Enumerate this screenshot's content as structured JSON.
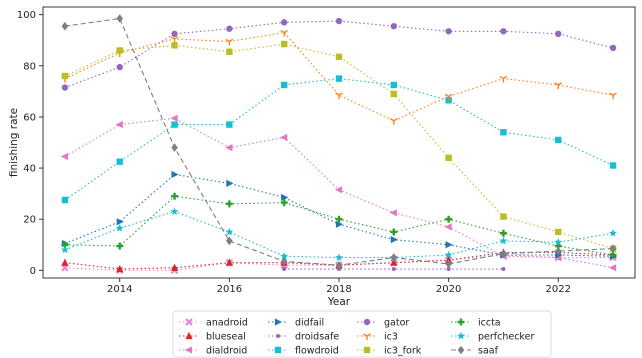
{
  "chart_data": {
    "type": "line",
    "xlabel": "Year",
    "ylabel": "finishing rate",
    "xlim": [
      2012.6,
      2023.4
    ],
    "ylim": [
      -3,
      103
    ],
    "xticks": [
      2014,
      2016,
      2018,
      2020,
      2022
    ],
    "yticks": [
      0,
      20,
      40,
      60,
      80,
      100
    ],
    "grid": false,
    "legend_position": "bottom-center",
    "series": [
      {
        "name": "anadroid",
        "color": "#e58ad8",
        "marker": "x",
        "dash": "dotted",
        "points": [
          [
            2013,
            1
          ],
          [
            2014,
            0
          ],
          [
            2015,
            0
          ],
          [
            2016,
            3
          ],
          [
            2017,
            2
          ],
          [
            2018,
            2
          ],
          [
            2019,
            3
          ],
          [
            2020,
            4
          ],
          [
            2021,
            6
          ],
          [
            2022,
            5
          ],
          [
            2023,
            5
          ]
        ]
      },
      {
        "name": "blueseal",
        "color": "#d62728",
        "marker": "triangle-up",
        "dash": "dotted",
        "points": [
          [
            2013,
            3
          ],
          [
            2014,
            0.5
          ],
          [
            2015,
            1
          ],
          [
            2016,
            3
          ],
          [
            2017,
            3
          ],
          [
            2018,
            2
          ],
          [
            2019,
            3
          ],
          [
            2020,
            4
          ],
          [
            2021,
            7
          ],
          [
            2022,
            7
          ],
          [
            2023,
            6
          ]
        ]
      },
      {
        "name": "dialdroid",
        "color": "#e377c2",
        "marker": "triangle-left",
        "dash": "dotted",
        "points": [
          [
            2013,
            44.5
          ],
          [
            2014,
            57
          ],
          [
            2015,
            59.5
          ],
          [
            2016,
            48
          ],
          [
            2017,
            52
          ],
          [
            2018,
            31.5
          ],
          [
            2019,
            22.5
          ],
          [
            2020,
            17
          ],
          [
            2021,
            5.5
          ],
          [
            2022,
            5
          ],
          [
            2023,
            1
          ]
        ]
      },
      {
        "name": "didfail",
        "color": "#1f77b4",
        "marker": "triangle-right",
        "dash": "dotted",
        "points": [
          [
            2013,
            10.5
          ],
          [
            2014,
            19
          ],
          [
            2015,
            37.5
          ],
          [
            2016,
            34
          ],
          [
            2017,
            28.5
          ],
          [
            2018,
            18
          ],
          [
            2019,
            12
          ],
          [
            2020,
            10
          ],
          [
            2021,
            6
          ],
          [
            2022,
            6
          ],
          [
            2023,
            5.5
          ]
        ]
      },
      {
        "name": "droidsafe",
        "color": "#9467bd",
        "marker": "circle-small",
        "dash": "dotted",
        "points": [
          [
            2017,
            0.5
          ],
          [
            2018,
            0.5
          ],
          [
            2019,
            0.5
          ],
          [
            2020,
            0.5
          ],
          [
            2021,
            0.5
          ]
        ]
      },
      {
        "name": "flowdroid",
        "color": "#17becf",
        "marker": "square",
        "dash": "dotted",
        "points": [
          [
            2013,
            27.5
          ],
          [
            2014,
            42.5
          ],
          [
            2015,
            57
          ],
          [
            2016,
            57
          ],
          [
            2017,
            72.5
          ],
          [
            2018,
            75
          ],
          [
            2019,
            72.5
          ],
          [
            2020,
            66.5
          ],
          [
            2021,
            54
          ],
          [
            2022,
            51
          ],
          [
            2023,
            41
          ]
        ]
      },
      {
        "name": "gator",
        "color": "#9467bd",
        "marker": "circle",
        "dash": "dotted",
        "points": [
          [
            2013,
            71.5
          ],
          [
            2014,
            79.5
          ],
          [
            2015,
            92.5
          ],
          [
            2016,
            94.5
          ],
          [
            2017,
            97
          ],
          [
            2018,
            97.5
          ],
          [
            2019,
            95.5
          ],
          [
            2020,
            93.5
          ],
          [
            2021,
            93.5
          ],
          [
            2022,
            92.5
          ],
          [
            2023,
            87
          ]
        ]
      },
      {
        "name": "ic3",
        "color": "#ff7f0e",
        "marker": "tri-down",
        "dash": "dotted",
        "points": [
          [
            2013,
            75
          ],
          [
            2014,
            85
          ],
          [
            2015,
            90.5
          ],
          [
            2016,
            89.5
          ],
          [
            2017,
            93
          ],
          [
            2018,
            68.5
          ],
          [
            2019,
            58.5
          ],
          [
            2020,
            68
          ],
          [
            2021,
            75
          ],
          [
            2022,
            72.5
          ],
          [
            2023,
            68.5
          ]
        ]
      },
      {
        "name": "ic3_fork",
        "color": "#bcbd22",
        "marker": "square",
        "dash": "dotted",
        "points": [
          [
            2013,
            76
          ],
          [
            2014,
            86
          ],
          [
            2015,
            88
          ],
          [
            2016,
            85.5
          ],
          [
            2017,
            88.5
          ],
          [
            2018,
            83.5
          ],
          [
            2019,
            69
          ],
          [
            2020,
            44
          ],
          [
            2021,
            21
          ],
          [
            2022,
            15
          ],
          [
            2023,
            8.5
          ]
        ]
      },
      {
        "name": "iccta",
        "color": "#2ca02c",
        "marker": "plus",
        "dash": "dotted",
        "points": [
          [
            2013,
            10
          ],
          [
            2014,
            9.5
          ],
          [
            2015,
            29
          ],
          [
            2016,
            26
          ],
          [
            2017,
            26.5
          ],
          [
            2018,
            20
          ],
          [
            2019,
            15
          ],
          [
            2020,
            20
          ],
          [
            2021,
            14.5
          ],
          [
            2022,
            9.5
          ],
          [
            2023,
            6
          ]
        ]
      },
      {
        "name": "perfchecker",
        "color": "#17becf",
        "marker": "star",
        "dash": "dotted",
        "points": [
          [
            2013,
            8
          ],
          [
            2014,
            16.5
          ],
          [
            2015,
            23
          ],
          [
            2016,
            15
          ],
          [
            2017,
            5.5
          ],
          [
            2018,
            5
          ],
          [
            2019,
            5
          ],
          [
            2020,
            6
          ],
          [
            2021,
            11.5
          ],
          [
            2022,
            11
          ],
          [
            2023,
            14.5
          ]
        ]
      },
      {
        "name": "saaf",
        "color": "#7f7f7f",
        "marker": "diamond",
        "dash": "dashed",
        "points": [
          [
            2013,
            95.5
          ],
          [
            2014,
            98.5
          ],
          [
            2015,
            48
          ],
          [
            2016,
            11.5
          ],
          [
            2017,
            3.5
          ],
          [
            2018,
            2
          ],
          [
            2019,
            5
          ],
          [
            2020,
            2.5
          ],
          [
            2021,
            6.5
          ],
          [
            2022,
            7.5
          ],
          [
            2023,
            8.5
          ]
        ]
      }
    ]
  }
}
